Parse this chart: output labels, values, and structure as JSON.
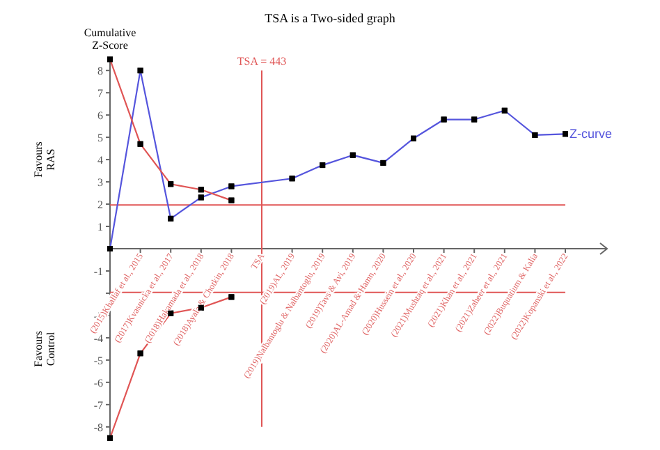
{
  "chart_data": {
    "type": "line",
    "title": "TSA is a Two-sided graph",
    "ylabel": "Cumulative\nZ-Score",
    "annotations": [
      "Favours\nRAS",
      "Favours\nControl"
    ],
    "categories": [
      null,
      "(2015)Khallaf et al., 2015",
      "(2017)Kvasnicka et al., 2017",
      "(2018)Hakamada et al., 2018",
      "(2018)Ayala & Chotkin, 2018",
      "TSA",
      "(2019)AL, 2019",
      "(2019)Nalbantoglu & Nalbantoglu, 2019",
      "(2019)Tavs & Avi, 2019",
      "(2020)AL-Amad & Hamn, 2020",
      "(2020)Hussein et al., 2020",
      "(2021)Mushtaq et al., 2021",
      "(2021)Khan et al., 2021",
      "(2021)Zaheer et al., 2021",
      "(2022)Buquatium & Kalia",
      "(2022)Kopanski et al., 2022"
    ],
    "series": [
      {
        "name": "Z-curve",
        "color": "#5555dd",
        "values": [
          0,
          8,
          1.35,
          2.3,
          2.8,
          null,
          3.15,
          3.75,
          4.2,
          3.85,
          4.95,
          5.8,
          5.8,
          6.2,
          5.1,
          5.15
        ]
      },
      {
        "color": "#e05555",
        "values": [
          8.5,
          4.7,
          2.9,
          2.65,
          2.17,
          null,
          null,
          null,
          null,
          null,
          null,
          null,
          null,
          null,
          null,
          null
        ]
      },
      {
        "color": "#e05555",
        "values": [
          -8.5,
          -4.7,
          -2.9,
          -2.65,
          -2.17,
          null,
          null,
          null,
          null,
          null,
          null,
          null,
          null,
          null,
          null,
          null
        ]
      }
    ],
    "ref_lines": [
      {
        "axis": "y",
        "value": 1.96,
        "color": "#e05555"
      },
      {
        "axis": "y",
        "value": -1.96,
        "color": "#e05555"
      },
      {
        "axis": "x",
        "value": "TSA",
        "label": "TSA = 443",
        "color": "#e05555"
      }
    ],
    "marker": "square",
    "ylim": [
      -8.6,
      8.6
    ],
    "yticks": [
      -8,
      -7,
      -6,
      -5,
      -4,
      -3,
      {
        "value": -2,
        "label": null
      },
      -1,
      1,
      2,
      3,
      4,
      5,
      6,
      7,
      8
    ]
  }
}
